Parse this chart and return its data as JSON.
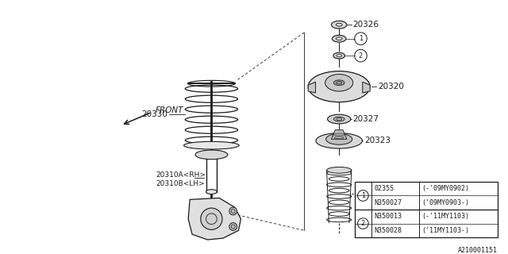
{
  "bg_color": "#ffffff",
  "line_color": "#1a1a1a",
  "fig_w": 6.4,
  "fig_h": 3.2,
  "dpi": 100,
  "table": {
    "rows": [
      [
        "1",
        "0235S",
        "(-'09MY0902)"
      ],
      [
        "1",
        "N350027",
        "('09MY0903-)"
      ],
      [
        "2",
        "N350013",
        "(-'11MY1103)"
      ],
      [
        "2",
        "N350028",
        "('11MY1103-)"
      ]
    ]
  },
  "diagram_id": "A210001151"
}
